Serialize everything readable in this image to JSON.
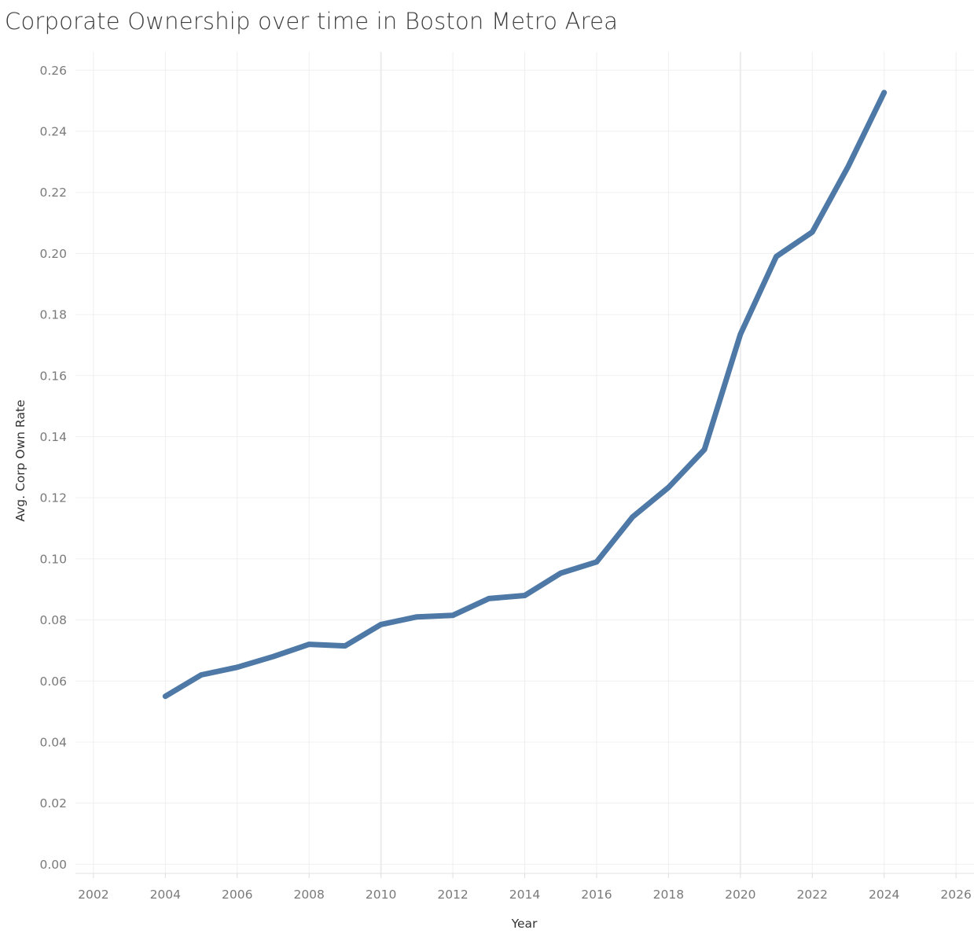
{
  "chart_data": {
    "type": "line",
    "title": "Corporate Ownership over time in Boston Metro Area",
    "xlabel": "Year",
    "ylabel": "Avg. Corp Own Rate",
    "xlim": [
      2001.5,
      2026.5
    ],
    "ylim": [
      -0.003,
      0.266
    ],
    "x_ticks": [
      2002,
      2004,
      2006,
      2008,
      2010,
      2012,
      2014,
      2016,
      2018,
      2020,
      2022,
      2024,
      2026
    ],
    "y_ticks": [
      0.0,
      0.02,
      0.04,
      0.06,
      0.08,
      0.1,
      0.12,
      0.14,
      0.16,
      0.18,
      0.2,
      0.22,
      0.24,
      0.26
    ],
    "grid": true,
    "colors": {
      "line": "#4e79a7",
      "grid": "#eeeeee",
      "tick_text": "#7a7a7a"
    },
    "series": [
      {
        "x": [
          2004,
          2005,
          2006,
          2007,
          2008,
          2009,
          2010,
          2011,
          2012,
          2013,
          2014,
          2015,
          2016,
          2017,
          2018,
          2019,
          2020,
          2021,
          2022,
          2023,
          2024
        ],
        "values": [
          0.055,
          0.062,
          0.0645,
          0.068,
          0.072,
          0.0715,
          0.0785,
          0.081,
          0.0815,
          0.087,
          0.088,
          0.0953,
          0.099,
          0.1137,
          0.1234,
          0.1358,
          0.1735,
          0.199,
          0.207,
          0.2285,
          0.2527
        ]
      }
    ]
  }
}
